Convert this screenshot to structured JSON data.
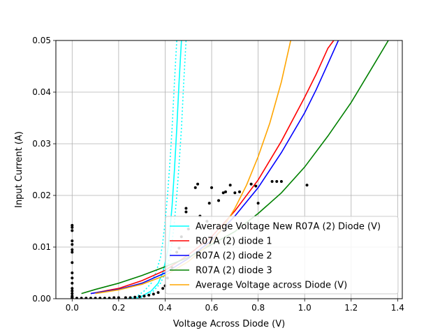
{
  "chart_data": {
    "type": "line",
    "xlabel": "Voltage Across Diode (V)",
    "ylabel": "Input Current (A)",
    "xlim": [
      -0.07,
      1.42
    ],
    "ylim": [
      0,
      0.05
    ],
    "xticks": [
      0.0,
      0.2,
      0.4,
      0.6,
      0.8,
      1.0,
      1.2,
      1.4
    ],
    "yticks": [
      0.0,
      0.01,
      0.02,
      0.03,
      0.04,
      0.05
    ],
    "xtick_labels": [
      "0.0",
      "0.2",
      "0.4",
      "0.6",
      "0.8",
      "1.0",
      "1.2",
      "1.4"
    ],
    "ytick_labels": [
      "0.00",
      "0.01",
      "0.02",
      "0.03",
      "0.04",
      "0.05"
    ],
    "grid": true,
    "legend_position": "lower-right",
    "series": [
      {
        "name": "Average Voltage New R07A (2) Diode (V)",
        "color": "#00ffff",
        "style": "solid",
        "x": [
          0.26,
          0.3,
          0.34,
          0.37,
          0.39,
          0.41,
          0.42,
          0.43,
          0.44,
          0.45,
          0.46,
          0.47
        ],
        "y": [
          0.0,
          0.0005,
          0.0015,
          0.003,
          0.005,
          0.009,
          0.013,
          0.018,
          0.025,
          0.033,
          0.042,
          0.05
        ]
      },
      {
        "name": "",
        "color": "#00ffff",
        "style": "dotted",
        "x": [
          0.24,
          0.28,
          0.31,
          0.34,
          0.36,
          0.38,
          0.39,
          0.4,
          0.41,
          0.42,
          0.43,
          0.44,
          0.45
        ],
        "y": [
          0.0,
          0.0005,
          0.0015,
          0.003,
          0.005,
          0.008,
          0.011,
          0.015,
          0.02,
          0.026,
          0.033,
          0.042,
          0.05
        ]
      },
      {
        "name": "",
        "color": "#00ffff",
        "style": "dotted",
        "x": [
          0.28,
          0.32,
          0.35,
          0.38,
          0.4,
          0.42,
          0.43,
          0.44,
          0.45,
          0.46,
          0.47,
          0.48,
          0.49
        ],
        "y": [
          0.0,
          0.0005,
          0.0015,
          0.003,
          0.005,
          0.008,
          0.011,
          0.015,
          0.02,
          0.026,
          0.033,
          0.042,
          0.05
        ]
      },
      {
        "name": "R07A (2) diode 1",
        "color": "#ff0000",
        "style": "solid",
        "x": [
          0.08,
          0.2,
          0.3,
          0.4,
          0.5,
          0.6,
          0.7,
          0.8,
          0.9,
          1.0,
          1.05,
          1.1,
          1.15
        ],
        "y": [
          0.001,
          0.002,
          0.0035,
          0.0055,
          0.0085,
          0.012,
          0.017,
          0.023,
          0.0305,
          0.039,
          0.0435,
          0.0485,
          0.0515
        ]
      },
      {
        "name": "R07A (2) diode 2",
        "color": "#0000ff",
        "style": "solid",
        "x": [
          0.08,
          0.2,
          0.3,
          0.4,
          0.5,
          0.6,
          0.7,
          0.8,
          0.9,
          1.0,
          1.05,
          1.1,
          1.15
        ],
        "y": [
          0.001,
          0.0018,
          0.003,
          0.005,
          0.0078,
          0.0113,
          0.016,
          0.0215,
          0.0283,
          0.036,
          0.0405,
          0.0455,
          0.0505
        ]
      },
      {
        "name": "R07A (2) diode 3",
        "color": "#008000",
        "style": "solid",
        "x": [
          0.04,
          0.1,
          0.2,
          0.3,
          0.4,
          0.5,
          0.6,
          0.7,
          0.8,
          0.9,
          1.0,
          1.1,
          1.2,
          1.3,
          1.36
        ],
        "y": [
          0.001,
          0.0018,
          0.003,
          0.0045,
          0.0062,
          0.008,
          0.0105,
          0.013,
          0.0165,
          0.0205,
          0.0255,
          0.0315,
          0.038,
          0.0455,
          0.05
        ]
      },
      {
        "name": "Average Voltage across Diode (V)",
        "color": "#ffa500",
        "style": "solid",
        "x": [
          0.1,
          0.2,
          0.3,
          0.4,
          0.5,
          0.6,
          0.65,
          0.7,
          0.75,
          0.8,
          0.85,
          0.9,
          0.94
        ],
        "y": [
          0.001,
          0.0017,
          0.0028,
          0.0045,
          0.0072,
          0.011,
          0.0138,
          0.0175,
          0.022,
          0.0275,
          0.034,
          0.042,
          0.05
        ]
      }
    ],
    "scatter": {
      "color": "#000000",
      "x": [
        0.0,
        0.0,
        0.0,
        0.0,
        0.0,
        0.0,
        0.0,
        0.0,
        0.0,
        0.0,
        0.0,
        0.0,
        0.0,
        0.0,
        0.0,
        0.0,
        0.0,
        0.0,
        0.0,
        0.0,
        0.02,
        0.04,
        0.06,
        0.08,
        0.1,
        0.12,
        0.14,
        0.16,
        0.18,
        0.2,
        0.23,
        0.25,
        0.27,
        0.29,
        0.31,
        0.33,
        0.35,
        0.37,
        0.39,
        0.4,
        0.41,
        0.43,
        0.45,
        0.46,
        0.47,
        0.49,
        0.49,
        0.5,
        0.53,
        0.54,
        0.55,
        0.58,
        0.59,
        0.6,
        0.63,
        0.65,
        0.66,
        0.68,
        0.7,
        0.72,
        0.77,
        0.79,
        0.8,
        0.86,
        0.88,
        0.9,
        1.01
      ],
      "y": [
        0.0,
        0.0002,
        0.0005,
        0.001,
        0.0015,
        0.002,
        0.003,
        0.004,
        0.005,
        0.007,
        0.009,
        0.0095,
        0.0105,
        0.0112,
        0.0132,
        0.0138,
        0.0142,
        0.0,
        0.0001,
        0.0003,
        0.0001,
        0.0001,
        0.0001,
        0.0001,
        0.0001,
        0.0001,
        0.0001,
        0.0001,
        0.0002,
        0.0002,
        0.0002,
        0.0002,
        0.0003,
        0.0004,
        0.0005,
        0.0007,
        0.0009,
        0.0012,
        0.002,
        0.0025,
        0.004,
        0.006,
        0.009,
        0.0098,
        0.012,
        0.0168,
        0.0175,
        0.0135,
        0.0215,
        0.0222,
        0.016,
        0.015,
        0.0185,
        0.0215,
        0.019,
        0.0205,
        0.0207,
        0.022,
        0.0205,
        0.0207,
        0.0222,
        0.0218,
        0.0185,
        0.0227,
        0.0227,
        0.0227,
        0.022
      ]
    }
  }
}
